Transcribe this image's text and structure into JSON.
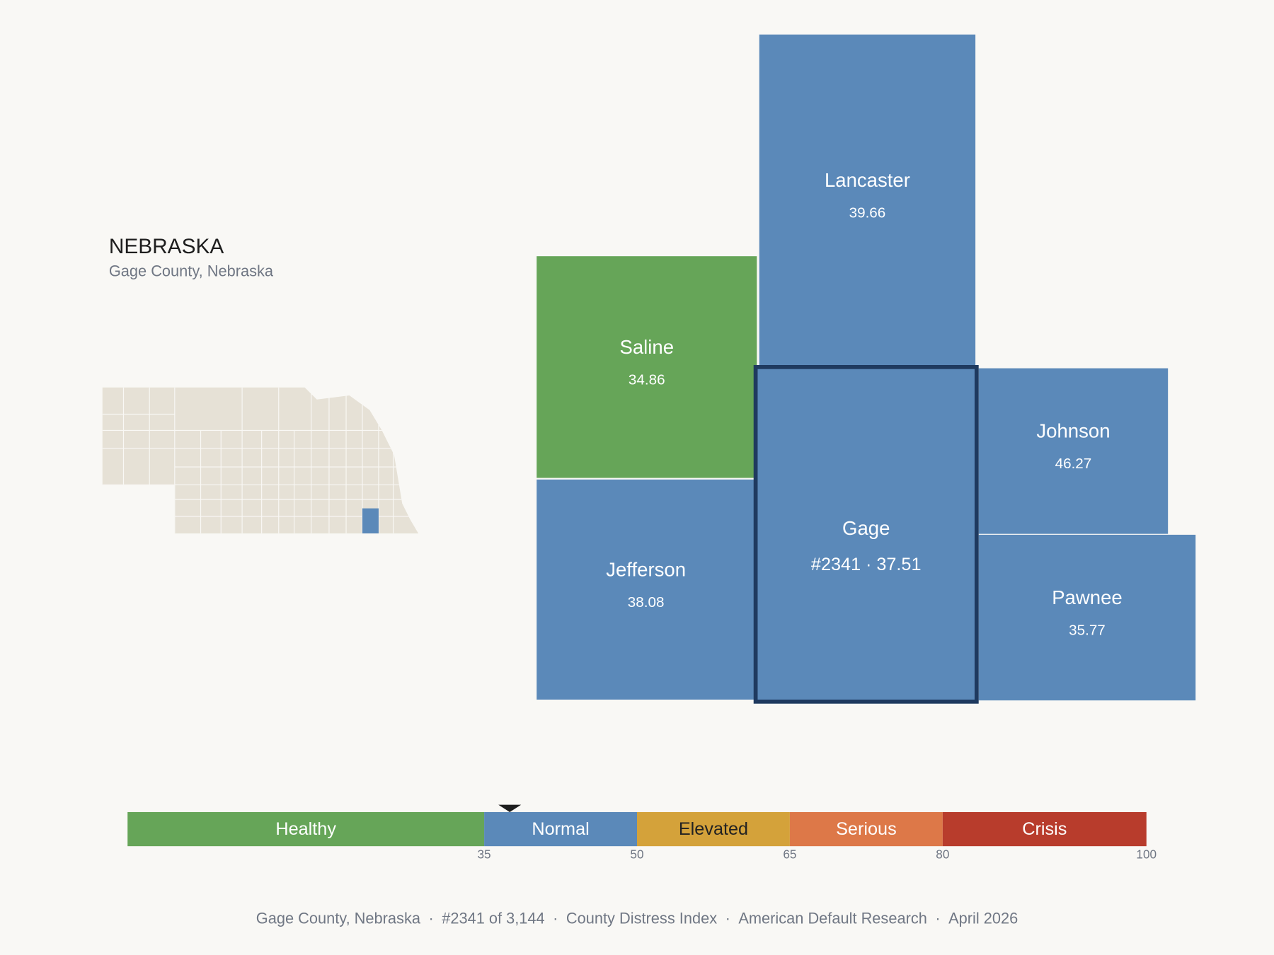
{
  "header": {
    "title": "NEBRASKA",
    "subtitle": "Gage County, Nebraska"
  },
  "counties": [
    {
      "name": "Lancaster",
      "value": 39.66
    },
    {
      "name": "Saline",
      "value": 34.86
    },
    {
      "name": "Gage",
      "rank_label": "#2341",
      "value": 37.51,
      "selected": true
    },
    {
      "name": "Johnson",
      "value": 46.27
    },
    {
      "name": "Jefferson",
      "value": 38.08
    },
    {
      "name": "Pawnee",
      "value": 35.77
    }
  ],
  "separator": "·",
  "scale": {
    "range": [
      0,
      100
    ],
    "ticks": [
      35,
      50,
      65,
      80,
      100
    ],
    "bands": [
      {
        "label": "Healthy",
        "color": "#66a558",
        "text_color": "#ffffff"
      },
      {
        "label": "Normal",
        "color": "#5b89b9",
        "text_color": "#ffffff"
      },
      {
        "label": "Elevated",
        "color": "#d4a23a",
        "text_color": "#222222"
      },
      {
        "label": "Serious",
        "color": "#dd7848",
        "text_color": "#ffffff"
      },
      {
        "label": "Crisis",
        "color": "#b83c2c",
        "text_color": "#ffffff"
      }
    ]
  },
  "footer": [
    "Gage County, Nebraska",
    "#2341 of 3,144",
    "County Distress Index",
    "American Default Research",
    "April 2026"
  ]
}
